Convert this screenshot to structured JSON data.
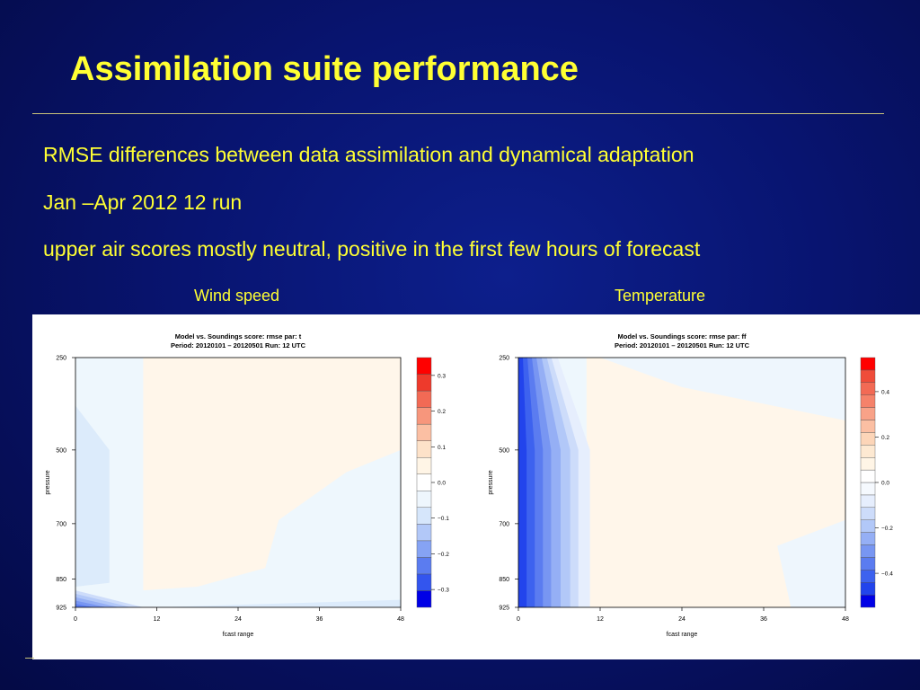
{
  "slide": {
    "title": "Assimilation suite performance",
    "bullets": [
      "RMSE differences between data assimilation and dynamical adaptation",
      "Jan –Apr 2012 12 run",
      "upper air scores mostly neutral, positive in the first few hours of forecast"
    ],
    "panel_labels": [
      "Wind speed",
      "Temperature"
    ],
    "colors": {
      "title": "#ffff33",
      "background": "#081470"
    }
  },
  "chart_data": [
    {
      "type": "heatmap",
      "title_line1": "Model vs. Soundings  score: rmse  par: t",
      "title_line2": "Period: 20120101 – 20120501 Run:  12 UTC",
      "xlabel": "fcast range",
      "ylabel": "pressure",
      "x_ticks": [
        "0",
        "12",
        "24",
        "36",
        "48"
      ],
      "xlim": [
        0,
        48
      ],
      "y_ticks": [
        "250",
        "500",
        "700",
        "850",
        "925"
      ],
      "colorbar_labels": [
        "0.3",
        "0.2",
        "0.1",
        "0.0",
        "−0.1",
        "−0.2",
        "−0.3"
      ],
      "colorbar_range": [
        -0.35,
        0.35
      ],
      "colorbar_colors": [
        "#0000e6",
        "#3355ee",
        "#5b7cf0",
        "#86a3f4",
        "#b2c8f8",
        "#d6e6fb",
        "#eef6fd",
        "#ffffff",
        "#fff5e6",
        "#fde2c9",
        "#fbbfa3",
        "#f7967c",
        "#f26a55",
        "#ee3a2c",
        "#ff0000"
      ],
      "regions": [
        {
          "level": -0.05,
          "x": [
            0,
            10,
            10,
            48,
            48,
            36,
            20,
            28,
            10,
            0
          ],
          "y": [
            250,
            250,
            700,
            700,
            925,
            925,
            900,
            850,
            880,
            880
          ]
        }
      ]
    },
    {
      "type": "heatmap",
      "title_line1": "Model vs. Soundings  score: rmse  par: ff",
      "title_line2": "Period: 20120101 – 20120501 Run:  12 UTC",
      "xlabel": "fcast range",
      "ylabel": "pressure",
      "x_ticks": [
        "0",
        "12",
        "24",
        "36",
        "48"
      ],
      "xlim": [
        0,
        48
      ],
      "y_ticks": [
        "250",
        "500",
        "700",
        "850",
        "925"
      ],
      "colorbar_labels": [
        "0.4",
        "0.2",
        "0.0",
        "−0.2",
        "−0.4"
      ],
      "colorbar_range": [
        -0.55,
        0.55
      ],
      "colorbar_colors": [
        "#0000e6",
        "#2244ec",
        "#3d62ef",
        "#5b7cf0",
        "#7896f2",
        "#95aff5",
        "#b2c8f8",
        "#cddcfa",
        "#e6eefd",
        "#f5f9fe",
        "#ffffff",
        "#fff5e6",
        "#fde9d2",
        "#fcd5b8",
        "#fbbfa3",
        "#f8a288",
        "#f5826a",
        "#f26a55",
        "#ef4c3a",
        "#ff0000"
      ]
    }
  ]
}
